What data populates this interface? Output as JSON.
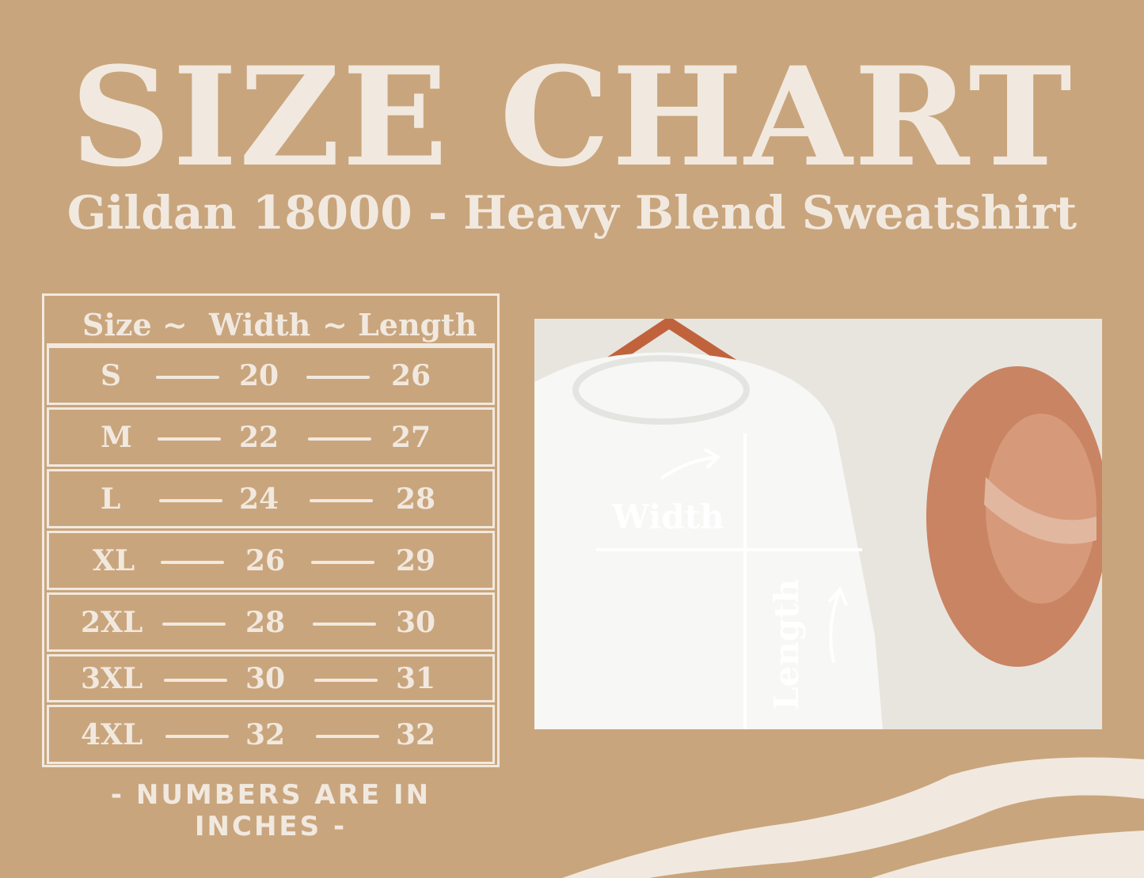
{
  "title": "SIZE CHART",
  "subtitle": "Gildan 18000 - Heavy Blend Sweatshirt",
  "table": {
    "headers": [
      "Size ~",
      "Width",
      "~ Length"
    ],
    "rows": [
      {
        "size": "S",
        "width": "20",
        "length": "26"
      },
      {
        "size": "M",
        "width": "22",
        "length": "27"
      },
      {
        "size": "L",
        "width": "24",
        "length": "28"
      },
      {
        "size": "XL",
        "width": "26",
        "length": "29"
      },
      {
        "size": "2XL",
        "width": "28",
        "length": "30"
      },
      {
        "size": "3XL",
        "width": "30",
        "length": "31"
      },
      {
        "size": "4XL",
        "width": "32",
        "length": "32"
      }
    ]
  },
  "note": "- NUMBERS ARE IN INCHES -",
  "photo": {
    "width_label": "Width",
    "length_label": "Length"
  },
  "colors": {
    "background": "#C9A57D",
    "text": "#F1E9DF",
    "hat": "#C98463"
  }
}
